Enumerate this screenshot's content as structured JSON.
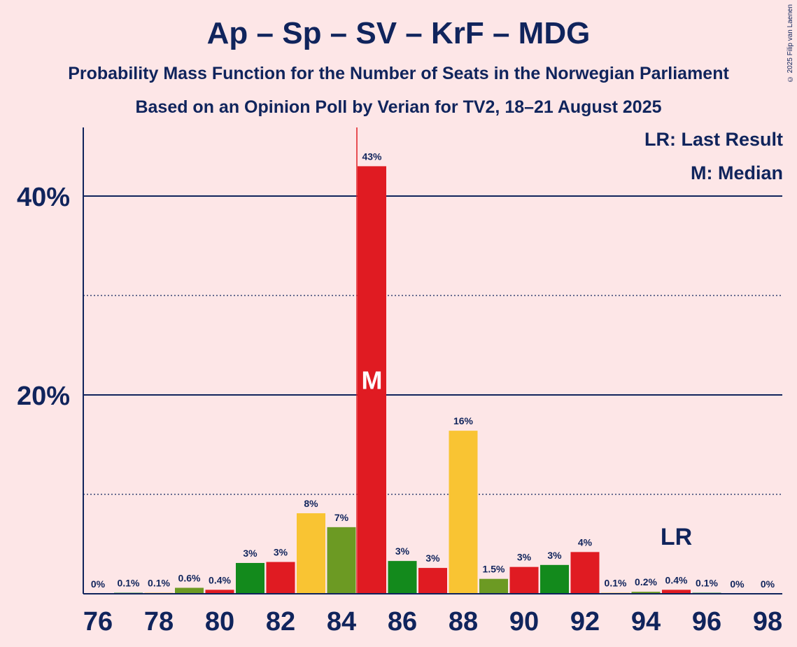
{
  "title": "Ap – Sp – SV – KrF – MDG",
  "subtitle1": "Probability Mass Function for the Number of Seats in the Norwegian Parliament",
  "subtitle2": "Based on an Opinion Poll by Verian for TV2, 18–21 August 2025",
  "copyright": "© 2025 Filip van Laenen",
  "legend": {
    "last_result": "LR: Last Result",
    "median": "M: Median"
  },
  "markers": {
    "median_label": "M",
    "last_result_label": "LR"
  },
  "colors": {
    "background": "#fde6e7",
    "text": "#10245c",
    "median_line": "#e01b22",
    "Ap": "#e01b22",
    "Sp": "#138a1c",
    "SV": "#f9c433",
    "KrF": "#f9c433",
    "MDG": "#6c9a23"
  },
  "chart_data": {
    "type": "bar",
    "x": [
      76,
      77,
      78,
      79,
      80,
      81,
      82,
      83,
      84,
      85,
      86,
      87,
      88,
      89,
      90,
      91,
      92,
      93,
      94,
      95,
      96,
      97,
      98
    ],
    "values": [
      0,
      0.1,
      0.1,
      0.6,
      0.4,
      3.1,
      3.2,
      8.1,
      6.7,
      43,
      3.3,
      2.6,
      16.4,
      1.5,
      2.7,
      2.9,
      4.2,
      0.1,
      0.2,
      0.4,
      0.1,
      0,
      0
    ],
    "value_labels": [
      "0%",
      "0.1%",
      "0.1%",
      "0.6%",
      "0.4%",
      "3%",
      "3%",
      "8%",
      "7%",
      "43%",
      "3%",
      "3%",
      "16%",
      "1.5%",
      "3%",
      "3%",
      "4%",
      "0.1%",
      "0.2%",
      "0.4%",
      "0.1%",
      "0%",
      "0%"
    ],
    "bar_colors": [
      "#e01b22",
      "#138a1c",
      "#f9c433",
      "#6c9a23",
      "#e01b22",
      "#138a1c",
      "#e01b22",
      "#f9c433",
      "#6c9a23",
      "#e01b22",
      "#138a1c",
      "#e01b22",
      "#f9c433",
      "#6c9a23",
      "#e01b22",
      "#138a1c",
      "#e01b22",
      "#f9c433",
      "#6c9a23",
      "#e01b22",
      "#138a1c",
      "#e01b22",
      "#f9c433"
    ],
    "x_tick_labels": [
      "76",
      "78",
      "80",
      "82",
      "84",
      "86",
      "88",
      "90",
      "92",
      "94",
      "96",
      "98"
    ],
    "x_tick_values": [
      76,
      78,
      80,
      82,
      84,
      86,
      88,
      90,
      92,
      94,
      96,
      98
    ],
    "y_tick_labels": [
      "20%",
      "40%"
    ],
    "y_tick_values": [
      20,
      40
    ],
    "y_minor_gridlines": [
      10,
      30
    ],
    "ylim": [
      0,
      47
    ],
    "median_seat": 85,
    "last_result_seat": 95,
    "grid": true
  }
}
